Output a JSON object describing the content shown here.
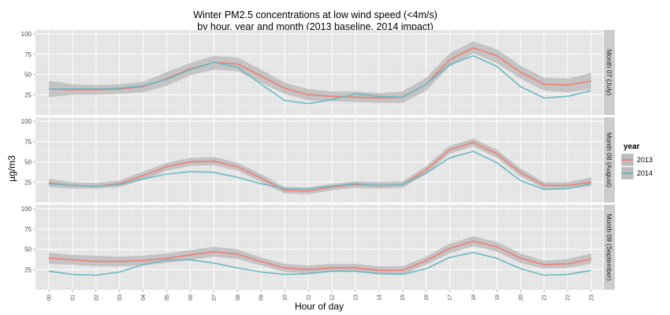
{
  "chart_data": {
    "type": "line",
    "title": "Winter PM2.5 concentrations  at low wind speed (<4m/s)",
    "subtitle": "by hour, year and month (2013 baseline, 2014 impact)",
    "xlabel": "Hour of day",
    "ylabel": "µg/m3",
    "x": [
      "00",
      "01",
      "02",
      "03",
      "04",
      "05",
      "06",
      "07",
      "08",
      "09",
      "10",
      "11",
      "12",
      "13",
      "14",
      "15",
      "16",
      "17",
      "18",
      "19",
      "20",
      "21",
      "22",
      "23"
    ],
    "ylim": [
      0,
      100
    ],
    "yticks": [
      "25",
      "50",
      "75",
      "100"
    ],
    "grid": true,
    "legend": {
      "title": "year",
      "position": "right",
      "entries": [
        "2013",
        "2014"
      ]
    },
    "colors": {
      "2013": "#f07c74",
      "2014": "#6cb8c2",
      "ribbon": "#bdbdbd",
      "panel": "#e5e5e5",
      "strip": "#cccccc"
    },
    "panels": [
      {
        "label": "Month 07 (July)",
        "series": [
          {
            "name": "2013",
            "values": [
              32,
              31,
              31,
              32,
              35,
              45,
              57,
              65,
              63,
              48,
              33,
              25,
              23,
              22,
              21,
              22,
              38,
              68,
              83,
              73,
              53,
              38,
              37,
              42
            ],
            "lower": [
              22,
              25,
              25,
              26,
              28,
              36,
              49,
              56,
              54,
              40,
              26,
              18,
              17,
              16,
              15,
              15,
              30,
              60,
              76,
              64,
              45,
              30,
              28,
              32
            ],
            "upper": [
              42,
              38,
              37,
              38,
              41,
              53,
              64,
              73,
              71,
              56,
              40,
              32,
              29,
              29,
              27,
              29,
              46,
              76,
              91,
              81,
              61,
              46,
              45,
              52
            ]
          },
          {
            "name": "2014",
            "values": [
              32,
              32,
              32,
              33,
              36,
              44,
              56,
              65,
              59,
              38,
              18,
              14,
              19,
              26,
              23,
              22,
              38,
              62,
              73,
              60,
              35,
              21,
              23,
              30
            ]
          }
        ]
      },
      {
        "label": "Month 08 (August)",
        "series": [
          {
            "name": "2013",
            "values": [
              24,
              21,
              20,
              23,
              33,
              44,
              50,
              51,
              44,
              30,
              15,
              14,
              19,
              22,
              21,
              22,
              40,
              65,
              74,
              60,
              37,
              21,
              21,
              25
            ],
            "lower": [
              19,
              17,
              17,
              19,
              28,
              39,
              45,
              46,
              39,
              25,
              11,
              10,
              15,
              18,
              17,
              18,
              35,
              60,
              69,
              55,
              32,
              17,
              17,
              20
            ],
            "upper": [
              29,
              25,
              24,
              27,
              38,
              49,
              55,
              56,
              49,
              35,
              19,
              18,
              23,
              26,
              25,
              26,
              45,
              70,
              79,
              65,
              42,
              25,
              25,
              31
            ]
          },
          {
            "name": "2014",
            "values": [
              23,
              21,
              20,
              22,
              29,
              35,
              38,
              37,
              31,
              23,
              17,
              17,
              20,
              23,
              21,
              22,
              36,
              55,
              63,
              49,
              27,
              16,
              17,
              23
            ]
          }
        ]
      },
      {
        "label": "Month 09 (September)",
        "series": [
          {
            "name": "2013",
            "values": [
              39,
              37,
              35,
              35,
              36,
              39,
              43,
              47,
              44,
              35,
              27,
              25,
              27,
              27,
              24,
              24,
              36,
              51,
              60,
              53,
              39,
              31,
              32,
              38
            ],
            "lower": [
              32,
              31,
              29,
              29,
              30,
              33,
              37,
              41,
              38,
              30,
              22,
              20,
              22,
              22,
              19,
              19,
              31,
              45,
              54,
              47,
              33,
              26,
              27,
              32
            ],
            "upper": [
              46,
              43,
              42,
              41,
              42,
              45,
              49,
              53,
              50,
              40,
              32,
              30,
              32,
              32,
              29,
              29,
              41,
              57,
              66,
              59,
              45,
              36,
              38,
              45
            ]
          },
          {
            "name": "2014",
            "values": [
              23,
              19,
              18,
              22,
              31,
              37,
              37,
              33,
              27,
              22,
              19,
              20,
              23,
              23,
              20,
              19,
              26,
              40,
              46,
              39,
              26,
              18,
              19,
              24
            ]
          }
        ]
      }
    ]
  }
}
